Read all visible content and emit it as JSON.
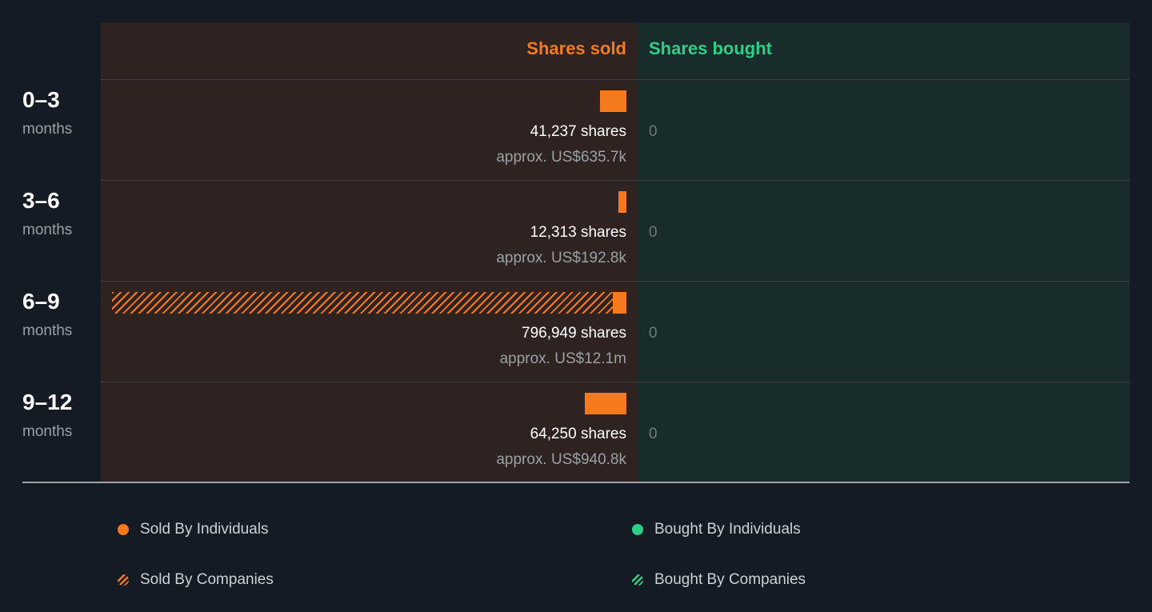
{
  "chart_data": {
    "type": "bar",
    "columns": {
      "sold": "Shares sold",
      "bought": "Shares bought"
    },
    "categories": [
      "0–3",
      "3–6",
      "6–9",
      "9–12"
    ],
    "category_unit": "months",
    "series": [
      {
        "name": "Sold By Individuals",
        "values": [
          41237,
          12313,
          21000,
          64250
        ]
      },
      {
        "name": "Sold By Companies",
        "values": [
          0,
          0,
          775949,
          0
        ]
      },
      {
        "name": "Bought By Individuals",
        "values": [
          0,
          0,
          0,
          0
        ]
      },
      {
        "name": "Bought By Companies",
        "values": [
          0,
          0,
          0,
          0
        ]
      }
    ],
    "rows": [
      {
        "period": "0–3",
        "unit": "months",
        "shares_text": "41,237 shares",
        "usd_text": "approx. US$635.7k",
        "bought_text": "0"
      },
      {
        "period": "3–6",
        "unit": "months",
        "shares_text": "12,313 shares",
        "usd_text": "approx. US$192.8k",
        "bought_text": "0"
      },
      {
        "period": "6–9",
        "unit": "months",
        "shares_text": "796,949 shares",
        "usd_text": "approx. US$12.1m",
        "bought_text": "0"
      },
      {
        "period": "9–12",
        "unit": "months",
        "shares_text": "64,250 shares",
        "usd_text": "approx. US$940.8k",
        "bought_text": "0"
      }
    ],
    "legend": [
      {
        "label": "Sold By Individuals",
        "style": "solid",
        "color": "#f57a1e"
      },
      {
        "label": "Bought By Individuals",
        "style": "solid",
        "color": "#2dd087"
      },
      {
        "label": "Sold By Companies",
        "style": "hatched",
        "color": "#f57a1e"
      },
      {
        "label": "Bought By Companies",
        "style": "hatched",
        "color": "#2dd087"
      }
    ],
    "legend_position": "bottom",
    "colors": {
      "sold": "#f57a1e",
      "bought": "#2dd087"
    }
  }
}
